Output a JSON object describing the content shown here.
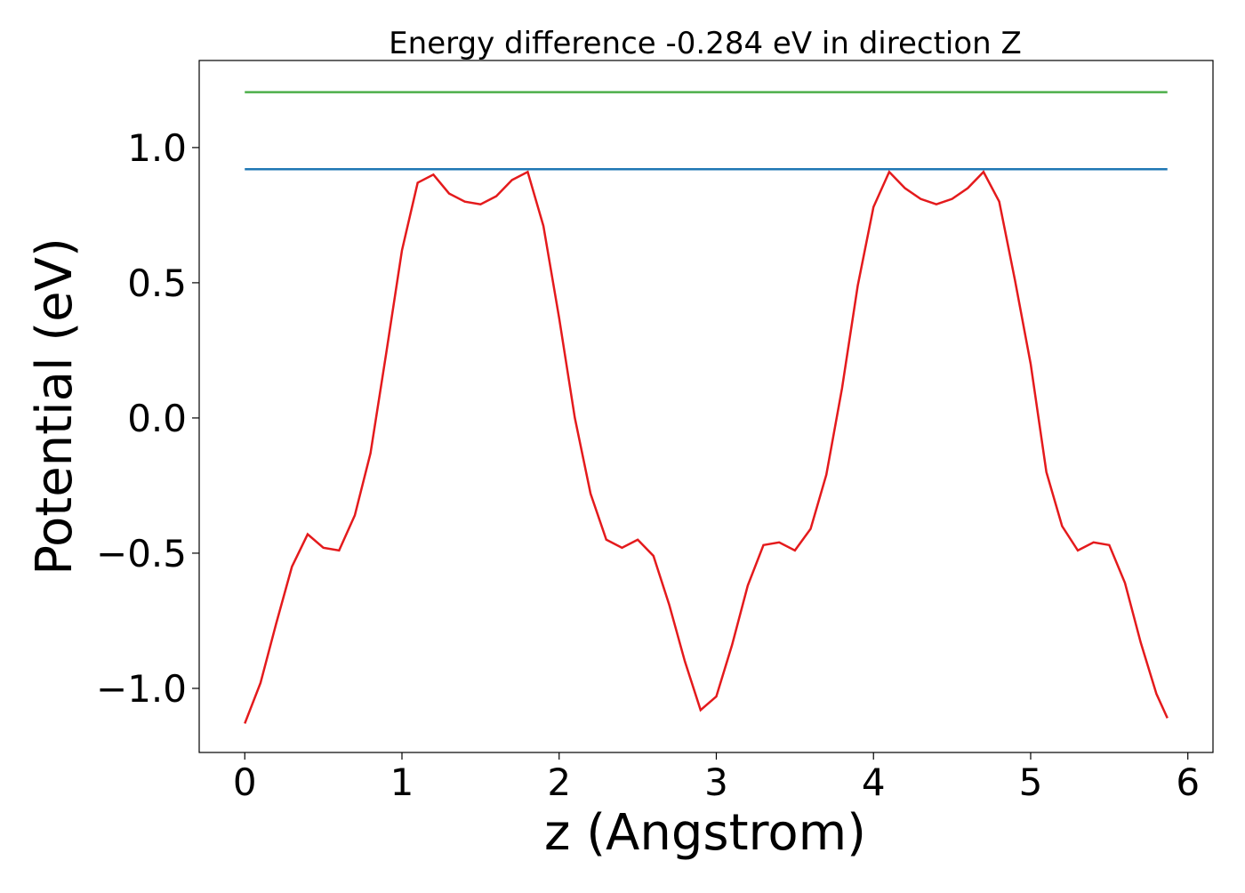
{
  "chart_data": {
    "type": "line",
    "title": "Energy difference -0.284 eV in direction Z",
    "xlabel": "z (Angstrom)",
    "ylabel": "Potential (eV)",
    "xlim": [
      -0.29,
      6.16
    ],
    "ylim": [
      -1.237,
      1.322
    ],
    "xticks": [
      0,
      1,
      2,
      3,
      4,
      5,
      6
    ],
    "yticks": [
      {
        "value": -1,
        "label": "−1.0"
      },
      {
        "value": -0.5,
        "label": "−0.5"
      },
      {
        "value": 0,
        "label": "0.0"
      },
      {
        "value": 0.5,
        "label": "0.5"
      },
      {
        "value": 1,
        "label": "1.0"
      }
    ],
    "grid": false,
    "series": [
      {
        "color": "#e41a1c",
        "x": [
          0,
          0.1,
          0.2,
          0.3,
          0.4,
          0.5,
          0.6,
          0.7,
          0.8,
          0.9,
          1.0,
          1.1,
          1.2,
          1.3,
          1.4,
          1.5,
          1.6,
          1.7,
          1.8,
          1.9,
          2.0,
          2.1,
          2.2,
          2.3,
          2.4,
          2.5,
          2.6,
          2.7,
          2.8,
          2.9,
          3.0,
          3.1,
          3.2,
          3.3,
          3.4,
          3.5,
          3.6,
          3.7,
          3.8,
          3.9,
          4.0,
          4.1,
          4.2,
          4.3,
          4.4,
          4.5,
          4.6,
          4.7,
          4.8,
          4.9,
          5.0,
          5.1,
          5.2,
          5.3,
          5.4,
          5.5,
          5.6,
          5.7,
          5.8,
          5.87
        ],
        "values": [
          -1.13,
          -0.98,
          -0.76,
          -0.55,
          -0.43,
          -0.48,
          -0.49,
          -0.36,
          -0.13,
          0.24,
          0.62,
          0.87,
          0.9,
          0.83,
          0.8,
          0.79,
          0.82,
          0.88,
          0.91,
          0.71,
          0.37,
          0.0,
          -0.28,
          -0.45,
          -0.48,
          -0.45,
          -0.51,
          -0.69,
          -0.9,
          -1.08,
          -1.03,
          -0.84,
          -0.62,
          -0.47,
          -0.46,
          -0.49,
          -0.41,
          -0.21,
          0.11,
          0.49,
          0.78,
          0.91,
          0.85,
          0.81,
          0.79,
          0.81,
          0.85,
          0.91,
          0.8,
          0.51,
          0.2,
          -0.2,
          -0.4,
          -0.49,
          -0.46,
          -0.47,
          -0.61,
          -0.83,
          -1.02,
          -1.11
        ]
      },
      {
        "color": "#1f77b4",
        "x": [
          0,
          5.87
        ],
        "values": [
          0.92,
          0.92
        ]
      },
      {
        "color": "#4daf4a",
        "x": [
          0,
          5.87
        ],
        "values": [
          1.205,
          1.205
        ]
      }
    ]
  }
}
